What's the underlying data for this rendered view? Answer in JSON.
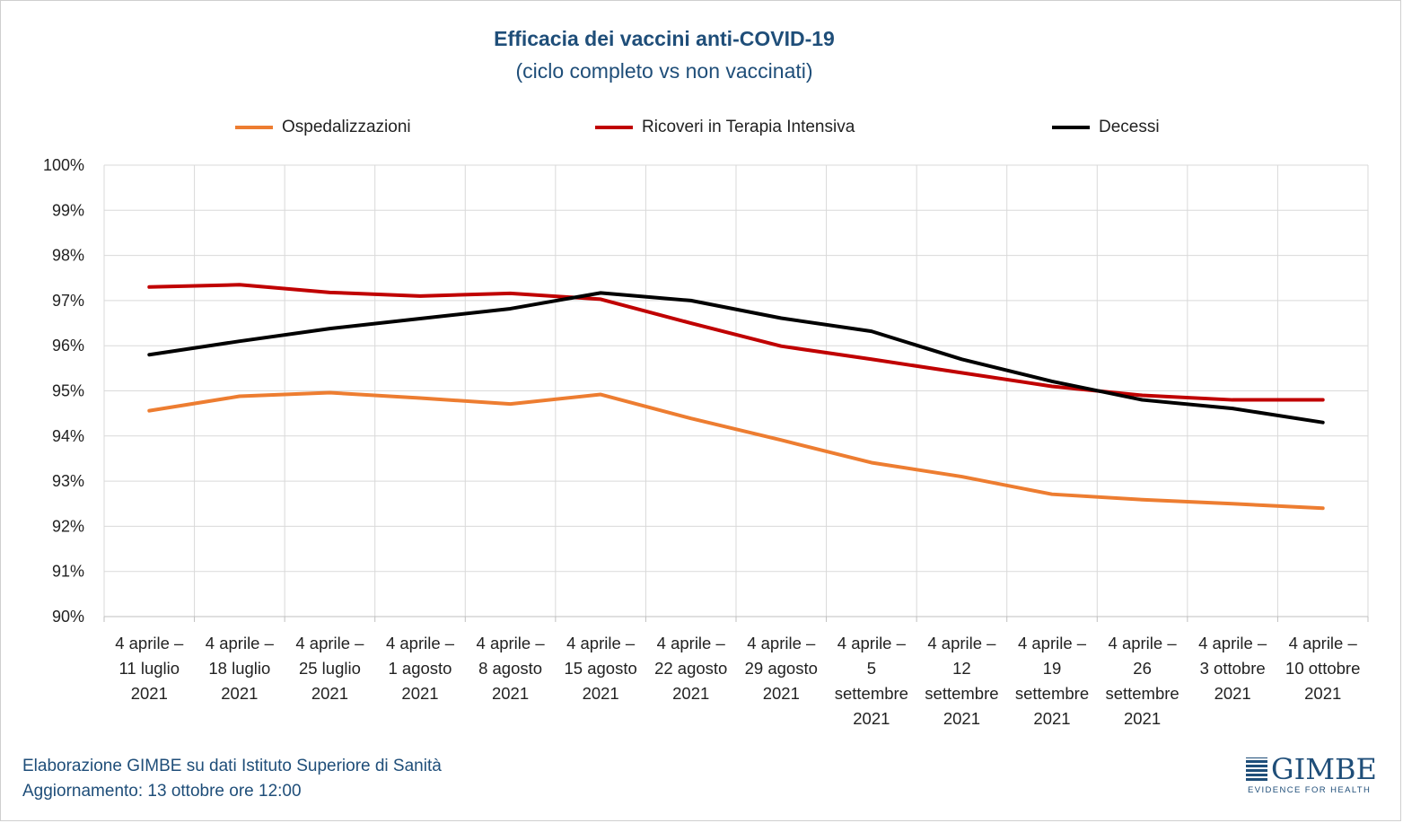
{
  "chart_data": {
    "type": "line",
    "title": "Efficacia  dei vaccini anti-COVID-19",
    "subtitle": "(ciclo completo vs non vaccinati)",
    "xlabel": "",
    "ylabel": "",
    "ylim": [
      90,
      100
    ],
    "y_ticks": [
      "90%",
      "91%",
      "92%",
      "93%",
      "94%",
      "95%",
      "96%",
      "97%",
      "98%",
      "99%",
      "100%"
    ],
    "grid": true,
    "legend_position": "top",
    "categories": [
      [
        "4 aprile –",
        "11 luglio",
        "2021"
      ],
      [
        "4 aprile –",
        "18 luglio",
        "2021"
      ],
      [
        "4 aprile –",
        "25 luglio",
        "2021"
      ],
      [
        "4 aprile –",
        "1 agosto",
        "2021"
      ],
      [
        "4 aprile –",
        "8 agosto",
        "2021"
      ],
      [
        "4 aprile –",
        "15 agosto",
        "2021"
      ],
      [
        "4 aprile –",
        "22 agosto",
        "2021"
      ],
      [
        "4 aprile –",
        "29 agosto",
        "2021"
      ],
      [
        "4 aprile –",
        "5",
        "settembre",
        "2021"
      ],
      [
        "4 aprile –",
        "12",
        "settembre",
        "2021"
      ],
      [
        "4 aprile –",
        "19",
        "settembre",
        "2021"
      ],
      [
        "4 aprile –",
        "26",
        "settembre",
        "2021"
      ],
      [
        "4 aprile –",
        "3 ottobre",
        "2021"
      ],
      [
        "4 aprile –",
        "10 ottobre",
        "2021"
      ]
    ],
    "series": [
      {
        "name": "Ospedalizzazioni",
        "color": "#ed7d31",
        "values": [
          94.56,
          94.88,
          94.96,
          94.84,
          94.71,
          94.92,
          94.39,
          93.91,
          93.41,
          93.1,
          92.71,
          92.59,
          92.5,
          92.4
        ]
      },
      {
        "name": "Ricoveri in Terapia Intensiva",
        "color": "#c00000",
        "values": [
          97.3,
          97.35,
          97.18,
          97.1,
          97.16,
          97.03,
          96.5,
          95.99,
          95.7,
          95.4,
          95.1,
          94.9,
          94.8,
          94.8
        ]
      },
      {
        "name": "Decessi",
        "color": "#000000",
        "values": [
          95.8,
          96.1,
          96.38,
          96.6,
          96.82,
          97.17,
          97.0,
          96.61,
          96.32,
          95.7,
          95.21,
          94.8,
          94.61,
          94.3
        ]
      }
    ]
  },
  "footer": {
    "line1": "Elaborazione GIMBE su dati Istituto Superiore di Sanità",
    "line2": "Aggiornamento: 13 ottobre ore 12:00"
  },
  "logo": {
    "name": "GIMBE",
    "tagline": "EVIDENCE FOR HEALTH"
  }
}
